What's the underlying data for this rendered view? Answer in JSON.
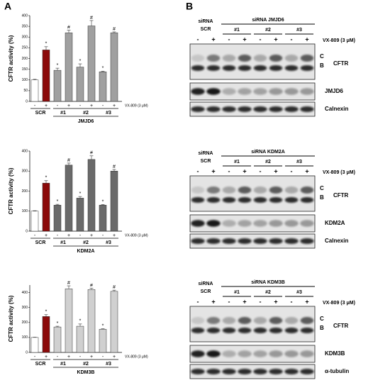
{
  "panel_labels": [
    "A",
    "B"
  ],
  "chart_data": [
    {
      "type": "bar",
      "ylabel": "CFTR activity (%)",
      "treatment": "VX-809 (3 μM)",
      "categories": [
        "-",
        "+",
        "-",
        "+",
        "-",
        "+",
        "-",
        "+"
      ],
      "values": [
        100,
        240,
        145,
        320,
        160,
        352,
        138,
        320
      ],
      "errors": [
        3,
        15,
        10,
        12,
        15,
        25,
        3,
        4
      ],
      "colors": [
        "#ffffff",
        "#8b0a0a",
        "#a0a0a0",
        "#a0a0a0",
        "#a0a0a0",
        "#a0a0a0",
        "#a0a0a0",
        "#a0a0a0"
      ],
      "annotations": [
        null,
        "*",
        "*",
        "#",
        "*",
        "#",
        "*",
        "#"
      ],
      "groups": [
        "SCR",
        "#1",
        "#2",
        "#3"
      ],
      "sirna": "JMJD6",
      "ylim": [
        0,
        400
      ],
      "yticks": [
        0,
        50,
        100,
        150,
        200,
        250,
        300,
        350,
        400
      ]
    },
    {
      "type": "bar",
      "ylabel": "CFTR activity (%)",
      "treatment": "VX-809 (3 μM)",
      "categories": [
        "-",
        "+",
        "-",
        "+",
        "-",
        "+",
        "-",
        "+"
      ],
      "values": [
        100,
        240,
        130,
        330,
        165,
        358,
        130,
        300
      ],
      "errors": [
        2,
        12,
        4,
        10,
        8,
        18,
        3,
        8
      ],
      "colors": [
        "#ffffff",
        "#8b0a0a",
        "#6a6a6a",
        "#6a6a6a",
        "#6a6a6a",
        "#6a6a6a",
        "#6a6a6a",
        "#6a6a6a"
      ],
      "annotations": [
        null,
        "*",
        "*",
        "#",
        "*",
        "#",
        "*",
        "#"
      ],
      "groups": [
        "SCR",
        "#1",
        "#2",
        "#3"
      ],
      "sirna": "KDM2A",
      "ylim": [
        0,
        400
      ],
      "yticks": [
        0,
        100,
        200,
        300,
        400
      ]
    },
    {
      "type": "bar",
      "ylabel": "CFTR activity (%)",
      "treatment": "VX-809 (3 μM)",
      "categories": [
        "-",
        "+",
        "-",
        "+",
        "-",
        "+",
        "-",
        "+"
      ],
      "values": [
        100,
        240,
        170,
        425,
        175,
        420,
        155,
        408
      ],
      "errors": [
        2,
        12,
        5,
        20,
        15,
        8,
        3,
        8
      ],
      "colors": [
        "#ffffff",
        "#8b0a0a",
        "#d0d0d0",
        "#d0d0d0",
        "#d0d0d0",
        "#d0d0d0",
        "#d0d0d0",
        "#d0d0d0"
      ],
      "annotations": [
        null,
        "*",
        "*",
        "#",
        "*",
        "#",
        "*",
        "#"
      ],
      "groups": [
        "SCR",
        "#1",
        "#2",
        "#3"
      ],
      "sirna": "KDM3B",
      "ylim": [
        0,
        450
      ],
      "yticks": [
        0,
        100,
        200,
        300,
        400
      ]
    }
  ],
  "blots": [
    {
      "sirna": "siRNA",
      "control": "SCR",
      "target": "siRNA JMJD6",
      "groups": [
        "#1",
        "#2",
        "#3"
      ],
      "treatment": "VX-809 (3 μM)",
      "signs": [
        "-",
        "+",
        "-",
        "+",
        "-",
        "+",
        "-",
        "+"
      ],
      "band_labels": [
        "C",
        "B"
      ],
      "rows": [
        "CFTR",
        "JMJD6",
        "Calnexin"
      ]
    },
    {
      "sirna": "siRNA",
      "control": "SCR",
      "target": "siRNA KDM2A",
      "groups": [
        "#1",
        "#2",
        "#3"
      ],
      "treatment": "VX-809 (3 μM)",
      "signs": [
        "-",
        "+",
        "-",
        "+",
        "-",
        "+",
        "-",
        "+"
      ],
      "band_labels": [
        "C",
        "B"
      ],
      "rows": [
        "CFTR",
        "KDM2A",
        "Calnexin"
      ]
    },
    {
      "sirna": "siRNA",
      "control": "SCR",
      "target": "siRNA KDM3B",
      "groups": [
        "#1",
        "#2",
        "#3"
      ],
      "treatment": "VX-809 (3 μM)",
      "signs": [
        "-",
        "+",
        "-",
        "+",
        "-",
        "+",
        "-",
        "+"
      ],
      "band_labels": [
        "C",
        "B"
      ],
      "rows": [
        "CFTR",
        "KDM3B",
        "α-tubulin"
      ]
    }
  ]
}
